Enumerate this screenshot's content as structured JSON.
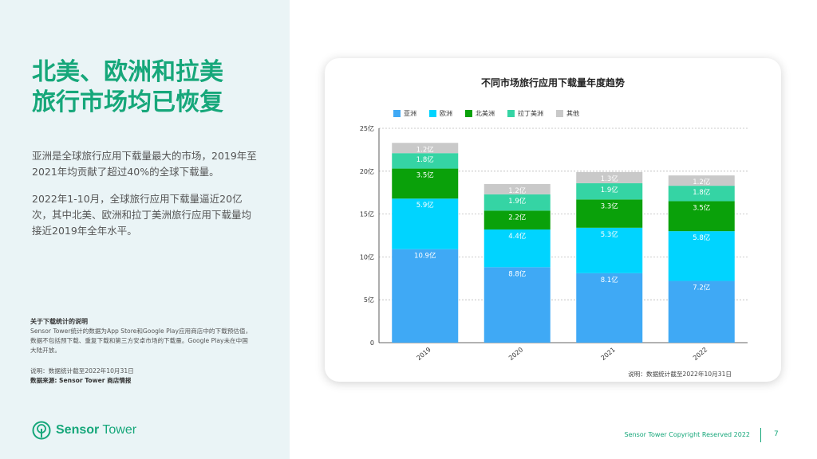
{
  "heading": {
    "line1": "北美、欧洲和拉美",
    "line2": "旅行市场均已恢复"
  },
  "paragraphs": [
    "亚洲是全球旅行应用下载量最大的市场，2019年至2021年均贡献了超过40%的全球下载量。",
    "2022年1-10月，全球旅行应用下载量逼近20亿次，其中北美、欧洲和拉丁美洲旅行应用下载量均接近2019年全年水平。"
  ],
  "notes": {
    "title": "关于下载统计的说明",
    "body": "Sensor Tower统计的数据为App Store和Google Play应用商店中的下载预估值，数据不包括预下载、重复下载和第三方安卓市场的下载量。Google Play未在中国大陆开放。",
    "date": "说明：数据统计截至2022年10月31日",
    "source": "数据来源: Sensor Tower 商店情报"
  },
  "logo": {
    "word1": "Sensor",
    "word2": "Tower"
  },
  "footer": {
    "copyright": "Sensor Tower Copyright Reserved 2022",
    "page": "7"
  },
  "chart_note": "说明：数据统计截至2022年10月31日",
  "colors": {
    "brand": "#16a77a",
    "asia": "#3fa9f5",
    "europe": "#00d4ff",
    "north_america": "#0aa10a",
    "latam": "#35d4a4",
    "other": "#c9c9c9"
  },
  "chart_data": {
    "type": "bar",
    "stacked": true,
    "title": "不同市场旅行应用下载量年度趋势",
    "categories": [
      "2019",
      "2020",
      "2021",
      "2022"
    ],
    "yticks": [
      "0",
      "5亿",
      "10亿",
      "15亿",
      "20亿",
      "25亿"
    ],
    "ylim": [
      0,
      25
    ],
    "grid": true,
    "legend_position": "top",
    "series": [
      {
        "name": "亚洲",
        "values": [
          10.9,
          8.8,
          8.1,
          7.2
        ],
        "labels": [
          "10.9亿",
          "8.8亿",
          "8.1亿",
          "7.2亿"
        ],
        "color": "#3fa9f5"
      },
      {
        "name": "欧洲",
        "values": [
          5.9,
          4.4,
          5.3,
          5.8
        ],
        "labels": [
          "5.9亿",
          "4.4亿",
          "5.3亿",
          "5.8亿"
        ],
        "color": "#00d4ff"
      },
      {
        "name": "北美洲",
        "values": [
          3.5,
          2.2,
          3.3,
          3.5
        ],
        "labels": [
          "3.5亿",
          "2.2亿",
          "3.3亿",
          "3.5亿"
        ],
        "color": "#0aa10a"
      },
      {
        "name": "拉丁美洲",
        "values": [
          1.8,
          1.9,
          1.9,
          1.8
        ],
        "labels": [
          "1.8亿",
          "1.9亿",
          "1.9亿",
          "1.8亿"
        ],
        "color": "#35d4a4"
      },
      {
        "name": "其他",
        "values": [
          1.2,
          1.2,
          1.3,
          1.2
        ],
        "labels": [
          "1.2亿",
          "1.2亿",
          "1.3亿",
          "1.2亿"
        ],
        "color": "#c9c9c9"
      }
    ]
  }
}
